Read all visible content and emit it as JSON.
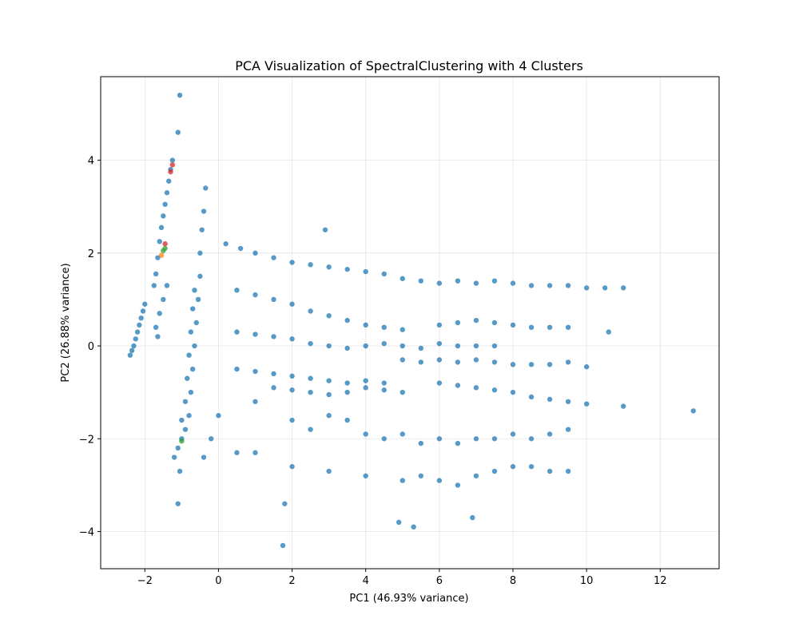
{
  "chart_data": {
    "type": "scatter",
    "title": "PCA Visualization of SpectralClustering with 4 Clusters",
    "xlabel": "PC1 (46.93% variance)",
    "ylabel": "PC2 (26.88% variance)",
    "xlim": [
      -3.2,
      13.6
    ],
    "ylim": [
      -4.8,
      5.8
    ],
    "xticks": [
      -2,
      0,
      2,
      4,
      6,
      8,
      10,
      12
    ],
    "yticks": [
      -4,
      -2,
      0,
      2,
      4
    ],
    "x_tick_labels": [
      "−2",
      "0",
      "2",
      "4",
      "6",
      "8",
      "10",
      "12"
    ],
    "y_tick_labels": [
      "−4",
      "−2",
      "0",
      "2",
      "4"
    ],
    "grid": true,
    "series": [
      {
        "color": "#1f77b4",
        "points": [
          [
            -2.4,
            -0.2
          ],
          [
            -2.3,
            0.0
          ],
          [
            -2.2,
            0.3
          ],
          [
            -2.1,
            0.6
          ],
          [
            -2.0,
            0.9
          ],
          [
            -2.35,
            -0.1
          ],
          [
            -2.25,
            0.15
          ],
          [
            -2.15,
            0.45
          ],
          [
            -2.05,
            0.75
          ],
          [
            -1.75,
            1.3
          ],
          [
            -1.7,
            1.55
          ],
          [
            -1.65,
            1.9
          ],
          [
            -1.6,
            2.25
          ],
          [
            -1.55,
            2.55
          ],
          [
            -1.5,
            2.8
          ],
          [
            -1.45,
            3.05
          ],
          [
            -1.4,
            3.3
          ],
          [
            -1.35,
            3.55
          ],
          [
            -1.3,
            3.8
          ],
          [
            -1.25,
            4.0
          ],
          [
            -1.1,
            4.6
          ],
          [
            -1.05,
            5.4
          ],
          [
            -1.7,
            0.4
          ],
          [
            -1.6,
            0.7
          ],
          [
            -1.5,
            1.0
          ],
          [
            -1.4,
            1.3
          ],
          [
            -1.65,
            0.2
          ],
          [
            -1.2,
            -2.4
          ],
          [
            -1.1,
            -2.2
          ],
          [
            -1.0,
            -2.0
          ],
          [
            -0.9,
            -1.8
          ],
          [
            -0.8,
            -1.5
          ],
          [
            -0.75,
            -1.0
          ],
          [
            -0.7,
            -0.5
          ],
          [
            -0.65,
            0.0
          ],
          [
            -0.6,
            0.5
          ],
          [
            -0.55,
            1.0
          ],
          [
            -0.5,
            1.5
          ],
          [
            -0.5,
            2.0
          ],
          [
            -0.45,
            2.5
          ],
          [
            -0.4,
            2.9
          ],
          [
            -0.35,
            3.4
          ],
          [
            -0.9,
            -1.2
          ],
          [
            -0.85,
            -0.7
          ],
          [
            -0.8,
            -0.2
          ],
          [
            -0.75,
            0.3
          ],
          [
            -0.7,
            0.8
          ],
          [
            -0.65,
            1.2
          ],
          [
            -1.0,
            -1.6
          ],
          [
            -1.05,
            -2.7
          ],
          [
            -1.1,
            -3.4
          ],
          [
            -0.4,
            -2.4
          ],
          [
            -0.2,
            -2.0
          ],
          [
            0.0,
            -1.5
          ],
          [
            0.2,
            2.2
          ],
          [
            0.6,
            2.1
          ],
          [
            1.0,
            2.0
          ],
          [
            1.5,
            1.9
          ],
          [
            2.0,
            1.8
          ],
          [
            2.5,
            1.75
          ],
          [
            3.0,
            1.7
          ],
          [
            3.5,
            1.65
          ],
          [
            4.0,
            1.6
          ],
          [
            4.5,
            1.55
          ],
          [
            5.0,
            1.45
          ],
          [
            5.5,
            1.4
          ],
          [
            6.0,
            1.35
          ],
          [
            6.5,
            1.4
          ],
          [
            7.0,
            1.35
          ],
          [
            7.5,
            1.4
          ],
          [
            8.0,
            1.35
          ],
          [
            8.5,
            1.3
          ],
          [
            9.0,
            1.3
          ],
          [
            9.5,
            1.3
          ],
          [
            10.0,
            1.25
          ],
          [
            10.5,
            1.25
          ],
          [
            11.0,
            1.25
          ],
          [
            2.9,
            2.5
          ],
          [
            0.5,
            1.2
          ],
          [
            1.0,
            1.1
          ],
          [
            1.5,
            1.0
          ],
          [
            2.0,
            0.9
          ],
          [
            2.5,
            0.75
          ],
          [
            3.0,
            0.65
          ],
          [
            3.5,
            0.55
          ],
          [
            4.0,
            0.45
          ],
          [
            4.5,
            0.4
          ],
          [
            5.0,
            0.35
          ],
          [
            6.0,
            0.45
          ],
          [
            6.5,
            0.5
          ],
          [
            7.0,
            0.55
          ],
          [
            7.5,
            0.5
          ],
          [
            8.0,
            0.45
          ],
          [
            8.5,
            0.4
          ],
          [
            9.0,
            0.4
          ],
          [
            9.5,
            0.4
          ],
          [
            10.6,
            0.3
          ],
          [
            0.5,
            0.3
          ],
          [
            1.0,
            0.25
          ],
          [
            1.5,
            0.2
          ],
          [
            2.0,
            0.15
          ],
          [
            2.5,
            0.05
          ],
          [
            3.0,
            0.0
          ],
          [
            3.5,
            -0.05
          ],
          [
            4.0,
            0.0
          ],
          [
            4.5,
            0.05
          ],
          [
            5.0,
            0.0
          ],
          [
            5.5,
            -0.05
          ],
          [
            6.0,
            0.05
          ],
          [
            6.5,
            0.0
          ],
          [
            7.0,
            0.0
          ],
          [
            7.5,
            0.0
          ],
          [
            0.5,
            -0.5
          ],
          [
            1.0,
            -0.55
          ],
          [
            1.5,
            -0.6
          ],
          [
            2.0,
            -0.65
          ],
          [
            2.5,
            -0.7
          ],
          [
            3.0,
            -0.75
          ],
          [
            3.5,
            -0.8
          ],
          [
            4.0,
            -0.75
          ],
          [
            4.5,
            -0.8
          ],
          [
            5.0,
            -0.3
          ],
          [
            5.5,
            -0.35
          ],
          [
            6.0,
            -0.3
          ],
          [
            6.5,
            -0.35
          ],
          [
            7.0,
            -0.3
          ],
          [
            7.5,
            -0.35
          ],
          [
            8.0,
            -0.4
          ],
          [
            8.5,
            -0.4
          ],
          [
            9.0,
            -0.4
          ],
          [
            9.5,
            -0.35
          ],
          [
            10.0,
            -0.45
          ],
          [
            1.5,
            -0.9
          ],
          [
            2.0,
            -0.95
          ],
          [
            2.5,
            -1.0
          ],
          [
            3.0,
            -1.05
          ],
          [
            3.5,
            -1.0
          ],
          [
            4.0,
            -0.9
          ],
          [
            4.5,
            -0.95
          ],
          [
            5.0,
            -1.0
          ],
          [
            6.0,
            -0.8
          ],
          [
            6.5,
            -0.85
          ],
          [
            7.0,
            -0.9
          ],
          [
            7.5,
            -0.95
          ],
          [
            8.0,
            -1.0
          ],
          [
            8.5,
            -1.1
          ],
          [
            9.0,
            -1.15
          ],
          [
            9.5,
            -1.2
          ],
          [
            10.0,
            -1.25
          ],
          [
            11.0,
            -1.3
          ],
          [
            12.9,
            -1.4
          ],
          [
            1.0,
            -1.2
          ],
          [
            2.0,
            -1.6
          ],
          [
            2.5,
            -1.8
          ],
          [
            3.0,
            -1.5
          ],
          [
            3.5,
            -1.6
          ],
          [
            4.0,
            -1.9
          ],
          [
            4.5,
            -2.0
          ],
          [
            5.0,
            -1.9
          ],
          [
            5.5,
            -2.1
          ],
          [
            6.0,
            -2.0
          ],
          [
            6.5,
            -2.1
          ],
          [
            7.0,
            -2.0
          ],
          [
            7.5,
            -2.0
          ],
          [
            8.0,
            -1.9
          ],
          [
            8.5,
            -2.0
          ],
          [
            9.0,
            -1.9
          ],
          [
            9.5,
            -1.8
          ],
          [
            0.5,
            -2.3
          ],
          [
            1.0,
            -2.3
          ],
          [
            2.0,
            -2.6
          ],
          [
            3.0,
            -2.7
          ],
          [
            4.0,
            -2.8
          ],
          [
            5.0,
            -2.9
          ],
          [
            5.5,
            -2.8
          ],
          [
            6.0,
            -2.9
          ],
          [
            6.5,
            -3.0
          ],
          [
            7.0,
            -2.8
          ],
          [
            7.5,
            -2.7
          ],
          [
            8.0,
            -2.6
          ],
          [
            8.5,
            -2.6
          ],
          [
            9.0,
            -2.7
          ],
          [
            9.5,
            -2.7
          ],
          [
            1.8,
            -3.4
          ],
          [
            4.9,
            -3.8
          ],
          [
            5.3,
            -3.9
          ],
          [
            6.9,
            -3.7
          ],
          [
            1.75,
            -4.3
          ]
        ]
      },
      {
        "color": "#ff7f0e",
        "points": [
          [
            -1.55,
            1.95
          ]
        ]
      },
      {
        "color": "#2ca02c",
        "points": [
          [
            -1.5,
            2.05
          ],
          [
            -1.45,
            2.1
          ],
          [
            -1.0,
            -2.05
          ]
        ]
      },
      {
        "color": "#d62728",
        "points": [
          [
            -1.45,
            2.2
          ],
          [
            -1.3,
            3.75
          ],
          [
            -1.25,
            3.9
          ]
        ]
      }
    ]
  }
}
